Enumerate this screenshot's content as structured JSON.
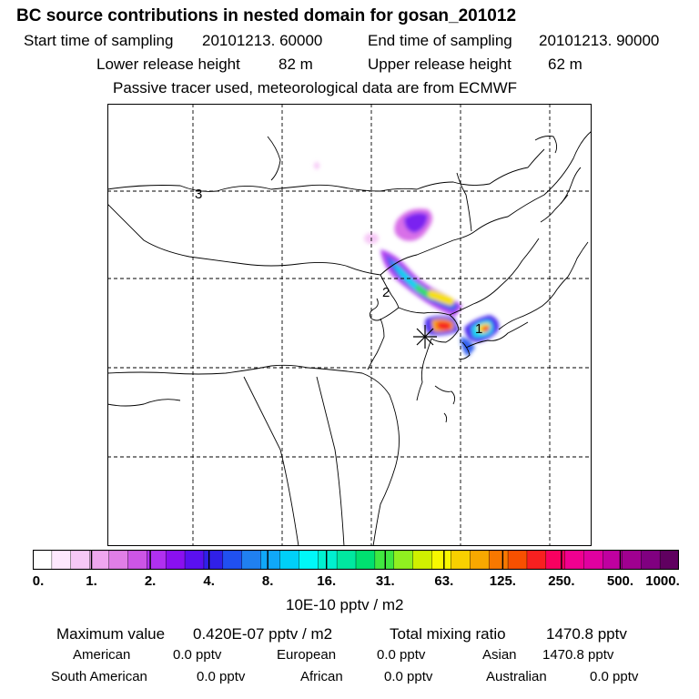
{
  "header": {
    "title": "BC  source contributions in nested domain for gosan_201012",
    "start_label": "Start time of sampling",
    "start_value": "20101213. 60000",
    "end_label": "End time of sampling",
    "end_value": "20101213. 90000",
    "lower_label": "Lower release height",
    "lower_value": "82 m",
    "upper_label": "Upper release height",
    "upper_value": "62 m",
    "tracer_note": "Passive tracer used, meteorological data are from ECMWF"
  },
  "map": {
    "labels": [
      "3",
      "2",
      "1"
    ],
    "receptor_marker": "star-marker-icon"
  },
  "colorbar": {
    "colors": [
      "#ffffff",
      "#fde8fd",
      "#f6c8f6",
      "#efa6ef",
      "#e07ee6",
      "#cc55e6",
      "#b030f0",
      "#8a10f0",
      "#5a10f0",
      "#3020e8",
      "#2050f0",
      "#2080f0",
      "#10a8f8",
      "#00d0f8",
      "#00f8f8",
      "#00f0d0",
      "#00e8a0",
      "#00e070",
      "#40e840",
      "#90f020",
      "#d0f000",
      "#f8f800",
      "#f8d000",
      "#f8a800",
      "#f87800",
      "#f85000",
      "#f82020",
      "#f80060",
      "#f00090",
      "#e000a0",
      "#c000a0",
      "#a00090",
      "#800080",
      "#600060"
    ],
    "ticks": [
      "0.",
      "1.",
      "2.",
      "4.",
      "8.",
      "16.",
      "31.",
      "63.",
      "125.",
      "250.",
      "500.",
      "1000."
    ],
    "unit": "10E-10 pptv / m2"
  },
  "summary": {
    "max_label": "Maximum value",
    "max_value": "0.420E-07 pptv / m2",
    "total_label": "Total mixing ratio",
    "total_value": "1470.8 pptv",
    "sources": [
      {
        "name": "American",
        "value": "0.0 pptv"
      },
      {
        "name": "European",
        "value": "0.0 pptv"
      },
      {
        "name": "Asian",
        "value": "1470.8 pptv"
      },
      {
        "name": "South American",
        "value": "0.0 pptv"
      },
      {
        "name": "African",
        "value": "0.0 pptv"
      },
      {
        "name": "Australian",
        "value": "0.0 pptv"
      }
    ]
  }
}
